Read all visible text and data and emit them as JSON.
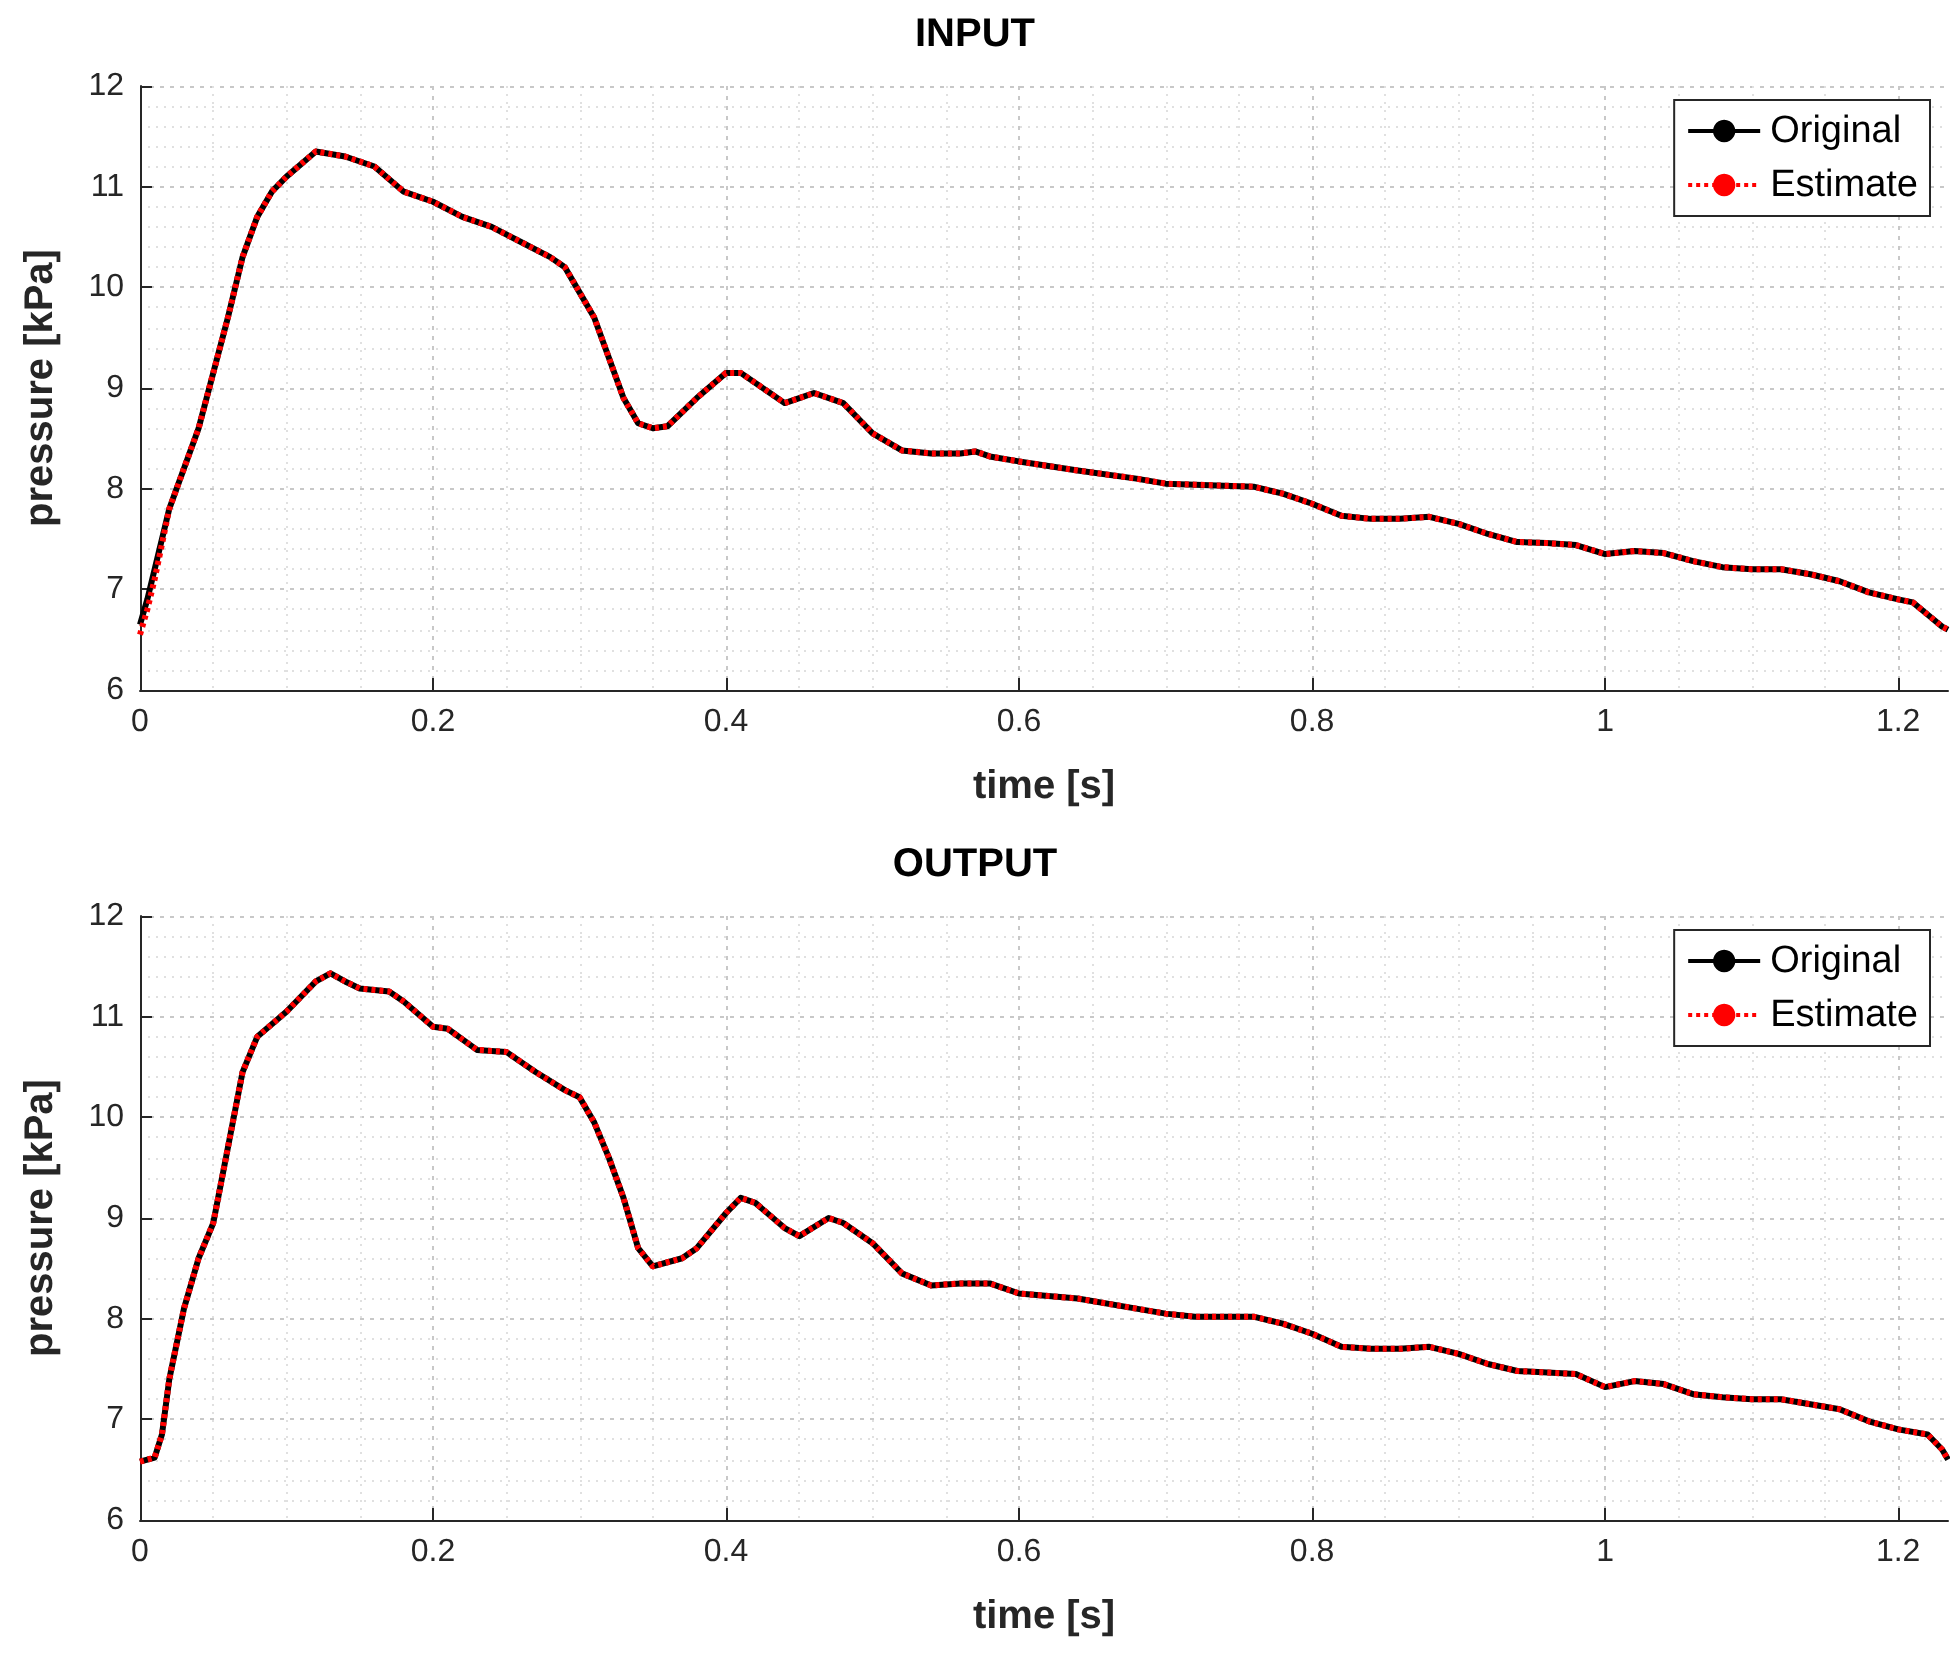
{
  "chart_data": [
    {
      "type": "line",
      "title": "INPUT",
      "xlabel": "time [s]",
      "ylabel": "pressure [kPa]",
      "x": [
        0,
        0.005,
        0.01,
        0.02,
        0.04,
        0.06,
        0.07,
        0.08,
        0.09,
        0.1,
        0.12,
        0.14,
        0.16,
        0.18,
        0.2,
        0.22,
        0.24,
        0.26,
        0.28,
        0.29,
        0.3,
        0.31,
        0.32,
        0.33,
        0.34,
        0.35,
        0.36,
        0.38,
        0.4,
        0.41,
        0.43,
        0.44,
        0.45,
        0.46,
        0.48,
        0.5,
        0.52,
        0.54,
        0.56,
        0.57,
        0.58,
        0.6,
        0.64,
        0.68,
        0.7,
        0.72,
        0.76,
        0.78,
        0.8,
        0.82,
        0.84,
        0.86,
        0.88,
        0.9,
        0.92,
        0.94,
        0.96,
        0.98,
        1.0,
        1.02,
        1.04,
        1.06,
        1.08,
        1.1,
        1.12,
        1.14,
        1.16,
        1.18,
        1.2,
        1.21,
        1.22,
        1.23,
        1.234
      ],
      "series": [
        {
          "name": "Original",
          "color": "#000000",
          "line_style": "solid",
          "values": [
            6.65,
            6.9,
            7.2,
            7.8,
            8.6,
            9.7,
            10.3,
            10.7,
            10.95,
            11.1,
            11.35,
            11.3,
            11.2,
            10.95,
            10.85,
            10.7,
            10.6,
            10.45,
            10.3,
            10.2,
            9.95,
            9.7,
            9.3,
            8.9,
            8.65,
            8.6,
            8.62,
            8.9,
            9.15,
            9.15,
            8.95,
            8.85,
            8.9,
            8.95,
            8.85,
            8.55,
            8.38,
            8.35,
            8.35,
            8.37,
            8.32,
            8.27,
            8.18,
            8.1,
            8.05,
            8.04,
            8.02,
            7.95,
            7.85,
            7.73,
            7.7,
            7.7,
            7.72,
            7.65,
            7.55,
            7.47,
            7.46,
            7.44,
            7.35,
            7.38,
            7.36,
            7.28,
            7.22,
            7.2,
            7.2,
            7.15,
            7.08,
            6.97,
            6.9,
            6.87,
            6.75,
            6.63,
            6.6
          ]
        },
        {
          "name": "Estimate",
          "color": "#ff0000",
          "line_style": "dotted",
          "values": [
            6.55,
            6.8,
            7.1,
            7.8,
            8.6,
            9.7,
            10.3,
            10.7,
            10.95,
            11.1,
            11.35,
            11.3,
            11.2,
            10.95,
            10.85,
            10.7,
            10.6,
            10.45,
            10.3,
            10.2,
            9.95,
            9.7,
            9.3,
            8.9,
            8.65,
            8.6,
            8.62,
            8.9,
            9.15,
            9.15,
            8.95,
            8.85,
            8.9,
            8.95,
            8.85,
            8.55,
            8.38,
            8.35,
            8.35,
            8.37,
            8.32,
            8.27,
            8.18,
            8.1,
            8.05,
            8.04,
            8.02,
            7.95,
            7.85,
            7.73,
            7.7,
            7.7,
            7.72,
            7.65,
            7.55,
            7.47,
            7.46,
            7.44,
            7.35,
            7.38,
            7.36,
            7.28,
            7.22,
            7.2,
            7.2,
            7.15,
            7.08,
            6.97,
            6.9,
            6.87,
            6.75,
            6.63,
            6.6
          ]
        }
      ],
      "xlim": [
        0,
        1.234
      ],
      "xticks": [
        0,
        0.2,
        0.4,
        0.6,
        0.8,
        1,
        1.2
      ],
      "ylim": [
        6,
        12
      ],
      "yticks": [
        6,
        7,
        8,
        9,
        10,
        11,
        12
      ],
      "grid": true,
      "legend": "top right"
    },
    {
      "type": "line",
      "title": "OUTPUT",
      "xlabel": "time [s]",
      "ylabel": "pressure [kPa]",
      "x": [
        0,
        0.01,
        0.015,
        0.02,
        0.03,
        0.04,
        0.05,
        0.06,
        0.07,
        0.08,
        0.1,
        0.12,
        0.13,
        0.14,
        0.15,
        0.17,
        0.18,
        0.2,
        0.21,
        0.23,
        0.25,
        0.27,
        0.29,
        0.3,
        0.31,
        0.32,
        0.33,
        0.34,
        0.35,
        0.37,
        0.38,
        0.4,
        0.41,
        0.42,
        0.44,
        0.45,
        0.47,
        0.48,
        0.5,
        0.52,
        0.54,
        0.56,
        0.58,
        0.6,
        0.64,
        0.68,
        0.7,
        0.72,
        0.76,
        0.78,
        0.8,
        0.82,
        0.84,
        0.86,
        0.88,
        0.9,
        0.92,
        0.94,
        0.98,
        1.0,
        1.02,
        1.04,
        1.06,
        1.08,
        1.1,
        1.12,
        1.14,
        1.16,
        1.18,
        1.2,
        1.22,
        1.23,
        1.234
      ],
      "series": [
        {
          "name": "Original",
          "color": "#000000",
          "line_style": "solid",
          "values": [
            6.58,
            6.62,
            6.85,
            7.4,
            8.1,
            8.6,
            8.95,
            9.7,
            10.45,
            10.8,
            11.05,
            11.35,
            11.43,
            11.35,
            11.28,
            11.25,
            11.15,
            10.9,
            10.88,
            10.67,
            10.65,
            10.45,
            10.27,
            10.2,
            9.95,
            9.6,
            9.2,
            8.7,
            8.52,
            8.6,
            8.7,
            9.05,
            9.2,
            9.15,
            8.9,
            8.82,
            9.0,
            8.95,
            8.75,
            8.45,
            8.33,
            8.35,
            8.35,
            8.25,
            8.2,
            8.1,
            8.05,
            8.02,
            8.02,
            7.95,
            7.85,
            7.72,
            7.7,
            7.7,
            7.72,
            7.65,
            7.55,
            7.48,
            7.45,
            7.32,
            7.38,
            7.35,
            7.25,
            7.22,
            7.2,
            7.2,
            7.15,
            7.1,
            6.98,
            6.9,
            6.85,
            6.7,
            6.6
          ]
        },
        {
          "name": "Estimate",
          "color": "#ff0000",
          "line_style": "dotted",
          "values": [
            6.58,
            6.62,
            6.85,
            7.4,
            8.1,
            8.6,
            8.95,
            9.7,
            10.45,
            10.8,
            11.05,
            11.35,
            11.43,
            11.35,
            11.28,
            11.25,
            11.15,
            10.9,
            10.88,
            10.67,
            10.65,
            10.45,
            10.27,
            10.2,
            9.95,
            9.6,
            9.2,
            8.7,
            8.52,
            8.6,
            8.7,
            9.05,
            9.2,
            9.15,
            8.9,
            8.82,
            9.0,
            8.95,
            8.75,
            8.45,
            8.33,
            8.35,
            8.35,
            8.25,
            8.2,
            8.1,
            8.05,
            8.02,
            8.02,
            7.95,
            7.85,
            7.72,
            7.7,
            7.7,
            7.72,
            7.65,
            7.55,
            7.48,
            7.45,
            7.32,
            7.38,
            7.35,
            7.25,
            7.22,
            7.2,
            7.2,
            7.15,
            7.1,
            6.98,
            6.9,
            6.85,
            6.7,
            6.6
          ]
        }
      ],
      "xlim": [
        0,
        1.234
      ],
      "xticks": [
        0,
        0.2,
        0.4,
        0.6,
        0.8,
        1,
        1.2
      ],
      "ylim": [
        6,
        12
      ],
      "yticks": [
        6,
        7,
        8,
        9,
        10,
        11,
        12
      ],
      "grid": true,
      "legend": "top right"
    }
  ]
}
